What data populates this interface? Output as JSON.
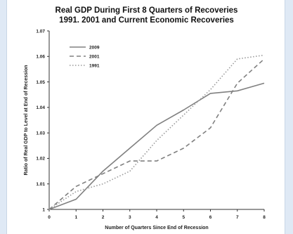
{
  "chart_data": {
    "type": "line",
    "title_line1": "Real GDP During First 8 Quarters of Recoveries",
    "title_line2": "1991. 2001 and Current Economic Recoveries",
    "xlabel": "Number of Quarters Since End of Recession",
    "ylabel": "Ratio of Real GDP to Level at End of Recession",
    "x": [
      0,
      1,
      2,
      3,
      4,
      5,
      6,
      7,
      8
    ],
    "xlim": [
      0,
      8
    ],
    "ylim": [
      1.0,
      1.07
    ],
    "yticks": [
      "1",
      "1.01",
      "1.02",
      "1.03",
      "1.04",
      "1.05",
      "1.06",
      "1.07"
    ],
    "xticks": [
      "0",
      "1",
      "2",
      "3",
      "4",
      "5",
      "6",
      "7",
      "8"
    ],
    "legend_position": "top-left",
    "series": [
      {
        "name": "2009",
        "style": "solid",
        "color": "#808080",
        "values": [
          1.0,
          1.004,
          1.015,
          1.024,
          1.033,
          1.039,
          1.0455,
          1.0465,
          1.0495
        ]
      },
      {
        "name": "2001",
        "style": "dashed",
        "color": "#808080",
        "values": [
          1.0,
          1.009,
          1.014,
          1.019,
          1.019,
          1.024,
          1.032,
          1.0495,
          1.059
        ]
      },
      {
        "name": "1991",
        "style": "dotted",
        "color": "#9a9a9a",
        "values": [
          1.0,
          1.007,
          1.01,
          1.015,
          1.027,
          1.037,
          1.047,
          1.059,
          1.0605
        ]
      }
    ]
  }
}
